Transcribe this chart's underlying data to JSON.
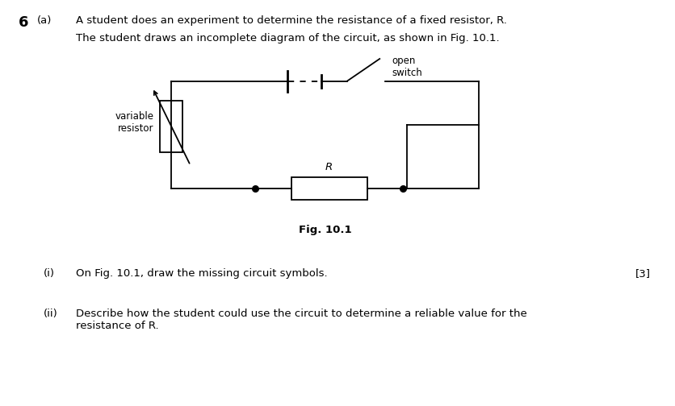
{
  "bg_color": "#ffffff",
  "line_color": "#000000",
  "title_number": "6",
  "title_letter": "(a)",
  "title_text": "A student does an experiment to determine the resistance of a fixed resistor, R.",
  "subtitle_text": "The student draws an incomplete diagram of the circuit, as shown in Fig. 10.1.",
  "fig_label": "Fig. 10.1",
  "q_i_label": "(i)",
  "q_i_text": "On Fig. 10.1, draw the missing circuit symbols.",
  "q_i_mark": "[3]",
  "q_ii_label": "(ii)",
  "q_ii_text": "Describe how the student could use the circuit to determine a reliable value for the\nresistance of R.",
  "var_resistor_label": "variable\nresistor",
  "switch_label": "open\nswitch",
  "resistor_label": "R",
  "lw": 1.3,
  "font_size": 9.5
}
